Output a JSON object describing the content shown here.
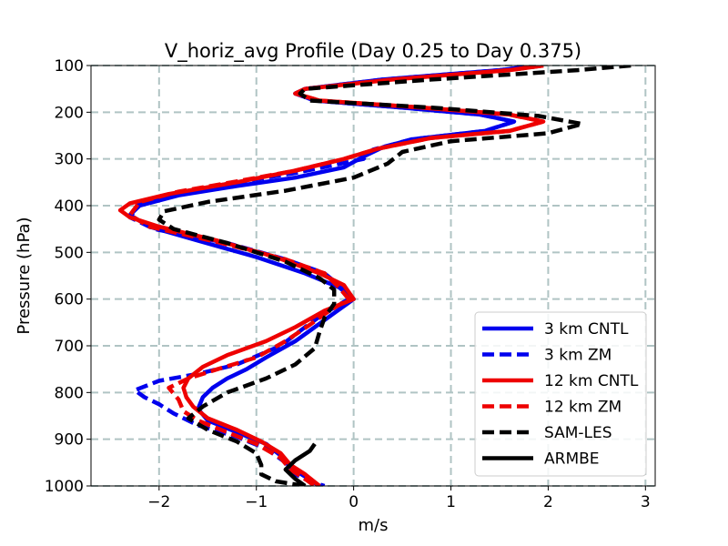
{
  "chart_data": {
    "type": "line",
    "title": "V_horiz_avg Profile (Day 0.25 to Day 0.375)",
    "xlabel": "m/s",
    "ylabel": "Pressure (hPa)",
    "xlim": [
      -2.7,
      3.1
    ],
    "ylim": [
      1000,
      100
    ],
    "y_inverted": true,
    "grid": true,
    "legend_position": "lower-right",
    "x_ticks": [
      -2,
      -1,
      0,
      1,
      2,
      3
    ],
    "x_tick_labels": [
      "−2",
      "−1",
      "0",
      "1",
      "2",
      "3"
    ],
    "y_ticks": [
      100,
      200,
      300,
      400,
      500,
      600,
      700,
      800,
      900,
      1000
    ],
    "y_tick_labels": [
      "100",
      "200",
      "300",
      "400",
      "500",
      "600",
      "700",
      "800",
      "900",
      "1000"
    ],
    "series": [
      {
        "name": "3 km CNTL",
        "color": "#0000ee",
        "dash": "solid",
        "points": [
          [
            1.9,
            100
          ],
          [
            1.5,
            110
          ],
          [
            0.3,
            130
          ],
          [
            -0.5,
            150
          ],
          [
            -0.6,
            160
          ],
          [
            -0.4,
            175
          ],
          [
            0.5,
            190
          ],
          [
            1.3,
            205
          ],
          [
            1.65,
            220
          ],
          [
            1.35,
            240
          ],
          [
            0.6,
            258
          ],
          [
            0.3,
            275
          ],
          [
            0.1,
            295
          ],
          [
            -0.1,
            318
          ],
          [
            -0.6,
            340
          ],
          [
            -1.2,
            358
          ],
          [
            -1.8,
            378
          ],
          [
            -2.2,
            400
          ],
          [
            -2.3,
            420
          ],
          [
            -2.1,
            445
          ],
          [
            -1.6,
            475
          ],
          [
            -1.0,
            510
          ],
          [
            -0.5,
            545
          ],
          [
            -0.15,
            575
          ],
          [
            0.0,
            600
          ],
          [
            -0.2,
            630
          ],
          [
            -0.4,
            660
          ],
          [
            -0.6,
            690
          ],
          [
            -0.9,
            725
          ],
          [
            -1.1,
            750
          ],
          [
            -1.3,
            770
          ],
          [
            -1.45,
            790
          ],
          [
            -1.55,
            810
          ],
          [
            -1.6,
            835
          ],
          [
            -1.5,
            860
          ],
          [
            -1.2,
            885
          ],
          [
            -0.9,
            910
          ],
          [
            -0.75,
            935
          ],
          [
            -0.65,
            960
          ],
          [
            -0.5,
            980
          ],
          [
            -0.35,
            1000
          ]
        ]
      },
      {
        "name": "3 km ZM",
        "color": "#0000ee",
        "dash": "dashed",
        "points": [
          [
            1.9,
            100
          ],
          [
            1.5,
            110
          ],
          [
            0.3,
            130
          ],
          [
            -0.5,
            150
          ],
          [
            -0.6,
            160
          ],
          [
            -0.4,
            175
          ],
          [
            0.5,
            190
          ],
          [
            1.3,
            205
          ],
          [
            1.65,
            220
          ],
          [
            1.35,
            240
          ],
          [
            0.6,
            258
          ],
          [
            0.2,
            280
          ],
          [
            0.1,
            300
          ],
          [
            -0.6,
            330
          ],
          [
            -1.2,
            350
          ],
          [
            -1.8,
            372
          ],
          [
            -2.2,
            395
          ],
          [
            -2.3,
            425
          ],
          [
            -2.05,
            450
          ],
          [
            -1.3,
            480
          ],
          [
            -0.7,
            515
          ],
          [
            -0.3,
            545
          ],
          [
            -0.12,
            575
          ],
          [
            -0.05,
            600
          ],
          [
            -0.3,
            630
          ],
          [
            -0.5,
            660
          ],
          [
            -0.75,
            700
          ],
          [
            -1.2,
            740
          ],
          [
            -1.6,
            760
          ],
          [
            -2.0,
            775
          ],
          [
            -2.25,
            795
          ],
          [
            -2.15,
            810
          ],
          [
            -2.0,
            825
          ],
          [
            -1.85,
            845
          ],
          [
            -1.6,
            870
          ],
          [
            -1.2,
            895
          ],
          [
            -0.9,
            920
          ],
          [
            -0.7,
            950
          ],
          [
            -0.6,
            975
          ],
          [
            -0.45,
            990
          ],
          [
            -0.3,
            1000
          ]
        ]
      },
      {
        "name": "12 km CNTL",
        "color": "#ee0000",
        "dash": "solid",
        "points": [
          [
            1.95,
            100
          ],
          [
            1.6,
            110
          ],
          [
            0.4,
            130
          ],
          [
            -0.5,
            150
          ],
          [
            -0.6,
            160
          ],
          [
            -0.35,
            175
          ],
          [
            0.7,
            190
          ],
          [
            1.6,
            205
          ],
          [
            1.95,
            220
          ],
          [
            1.6,
            240
          ],
          [
            0.8,
            255
          ],
          [
            0.25,
            278
          ],
          [
            -0.1,
            300
          ],
          [
            -0.6,
            325
          ],
          [
            -1.2,
            350
          ],
          [
            -1.9,
            375
          ],
          [
            -2.3,
            395
          ],
          [
            -2.4,
            410
          ],
          [
            -2.3,
            425
          ],
          [
            -2.0,
            445
          ],
          [
            -1.4,
            475
          ],
          [
            -0.8,
            510
          ],
          [
            -0.35,
            545
          ],
          [
            -0.1,
            570
          ],
          [
            0.0,
            600
          ],
          [
            -0.3,
            625
          ],
          [
            -0.6,
            660
          ],
          [
            -0.9,
            690
          ],
          [
            -1.3,
            720
          ],
          [
            -1.55,
            745
          ],
          [
            -1.7,
            770
          ],
          [
            -1.75,
            790
          ],
          [
            -1.72,
            810
          ],
          [
            -1.65,
            830
          ],
          [
            -1.5,
            855
          ],
          [
            -1.2,
            880
          ],
          [
            -0.95,
            905
          ],
          [
            -0.75,
            930
          ],
          [
            -0.65,
            955
          ],
          [
            -0.5,
            975
          ],
          [
            -0.35,
            1000
          ]
        ]
      },
      {
        "name": "12 km ZM",
        "color": "#ee0000",
        "dash": "dashed",
        "points": [
          [
            1.95,
            100
          ],
          [
            1.6,
            110
          ],
          [
            0.4,
            130
          ],
          [
            -0.5,
            150
          ],
          [
            -0.6,
            160
          ],
          [
            -0.35,
            175
          ],
          [
            0.7,
            190
          ],
          [
            1.6,
            205
          ],
          [
            1.95,
            220
          ],
          [
            1.6,
            240
          ],
          [
            0.8,
            255
          ],
          [
            0.25,
            278
          ],
          [
            -0.1,
            300
          ],
          [
            -0.6,
            325
          ],
          [
            -1.2,
            348
          ],
          [
            -1.8,
            370
          ],
          [
            -2.2,
            392
          ],
          [
            -2.3,
            420
          ],
          [
            -2.1,
            445
          ],
          [
            -1.4,
            478
          ],
          [
            -0.7,
            515
          ],
          [
            -0.3,
            545
          ],
          [
            -0.15,
            575
          ],
          [
            -0.05,
            600
          ],
          [
            -0.25,
            625
          ],
          [
            -0.45,
            655
          ],
          [
            -0.7,
            690
          ],
          [
            -1.0,
            725
          ],
          [
            -1.4,
            750
          ],
          [
            -1.7,
            770
          ],
          [
            -1.9,
            790
          ],
          [
            -1.8,
            815
          ],
          [
            -1.75,
            840
          ],
          [
            -1.6,
            860
          ],
          [
            -1.3,
            885
          ],
          [
            -1.0,
            910
          ],
          [
            -0.75,
            940
          ],
          [
            -0.65,
            965
          ],
          [
            -0.5,
            985
          ],
          [
            -0.4,
            1000
          ]
        ]
      },
      {
        "name": "SAM-LES",
        "color": "#000000",
        "dash": "dashed",
        "points": [
          [
            2.85,
            100
          ],
          [
            2.3,
            110
          ],
          [
            0.8,
            130
          ],
          [
            -0.5,
            150
          ],
          [
            -0.55,
            160
          ],
          [
            -0.45,
            175
          ],
          [
            0.8,
            190
          ],
          [
            1.9,
            208
          ],
          [
            2.35,
            225
          ],
          [
            2.0,
            245
          ],
          [
            1.0,
            262
          ],
          [
            0.5,
            285
          ],
          [
            0.35,
            310
          ],
          [
            0.0,
            340
          ],
          [
            -0.7,
            368
          ],
          [
            -1.5,
            392
          ],
          [
            -1.95,
            412
          ],
          [
            -2.0,
            430
          ],
          [
            -1.85,
            450
          ],
          [
            -1.3,
            480
          ],
          [
            -0.7,
            520
          ],
          [
            -0.35,
            555
          ],
          [
            -0.2,
            580
          ],
          [
            -0.2,
            610
          ],
          [
            -0.3,
            640
          ],
          [
            -0.35,
            670
          ],
          [
            -0.4,
            705
          ],
          [
            -0.6,
            740
          ],
          [
            -0.9,
            770
          ],
          [
            -1.3,
            800
          ],
          [
            -1.55,
            830
          ],
          [
            -1.7,
            855
          ],
          [
            -1.5,
            880
          ],
          [
            -1.2,
            905
          ],
          [
            -1.0,
            930
          ],
          [
            -0.95,
            955
          ],
          [
            -0.95,
            975
          ],
          [
            -0.8,
            990
          ],
          [
            -0.5,
            1000
          ]
        ]
      },
      {
        "name": "ARMBE",
        "color": "#000000",
        "dash": "solid",
        "points": [
          [
            -0.4,
            910
          ],
          [
            -0.45,
            925
          ],
          [
            -0.6,
            945
          ],
          [
            -0.7,
            965
          ],
          [
            -0.6,
            985
          ],
          [
            -0.5,
            1000
          ]
        ]
      }
    ]
  }
}
